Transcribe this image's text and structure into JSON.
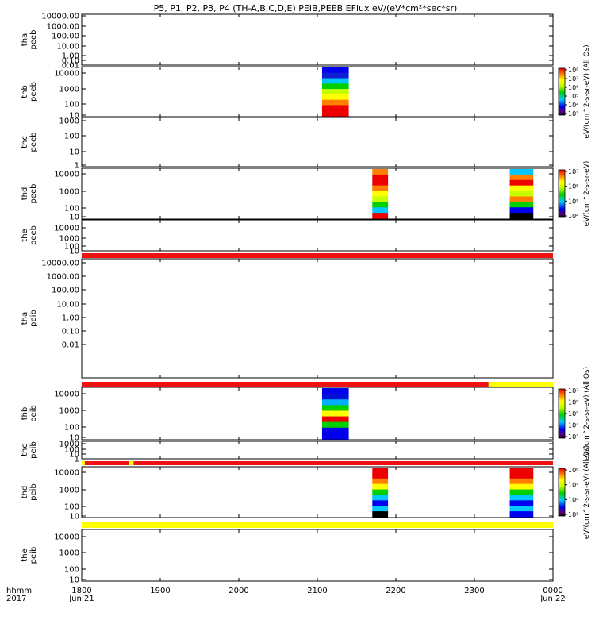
{
  "title": "P5, P1, P2, P3, P4 (TH-A,B,C,D,E) PEIB,PEEB EFlux eV/(eV*cm²*sec*sr)",
  "colors": {
    "state_red": "#ee1111",
    "state_yellow": "#ffff00",
    "axis": "#000000"
  },
  "time_axis": {
    "range_hours": [
      18,
      24
    ],
    "row_labels": [
      "hhmm",
      "2017"
    ],
    "ticks": [
      {
        "t": 18.0,
        "label": "1800",
        "sub": "Jun 21"
      },
      {
        "t": 19.0,
        "label": "1900",
        "sub": ""
      },
      {
        "t": 20.0,
        "label": "2000",
        "sub": ""
      },
      {
        "t": 21.0,
        "label": "2100",
        "sub": ""
      },
      {
        "t": 22.0,
        "label": "2200",
        "sub": ""
      },
      {
        "t": 23.0,
        "label": "2300",
        "sub": ""
      },
      {
        "t": 24.0,
        "label": "0000",
        "sub": "Jun 22"
      }
    ]
  },
  "colorbars": [
    {
      "id": "cb1",
      "panel": 1,
      "title": "eV/(cm^2-s-sr-eV) (All Qs)",
      "ticks": [
        "10³",
        "10⁴",
        "10⁵",
        "10⁶",
        "10⁷",
        "10⁸"
      ]
    },
    {
      "id": "cb2",
      "panel": 3,
      "title": "eV/(cm^2-s-sr-eV)",
      "ticks": [
        "10⁴",
        "10⁵",
        "10⁶",
        "10⁷"
      ]
    },
    {
      "id": "cb3",
      "panel": 6,
      "title": "eV/(cm^2-s-sr-eV) (All Qs)",
      "ticks": [
        "10³",
        "10⁴",
        "10⁵",
        "10⁶",
        "10⁷"
      ]
    },
    {
      "id": "cb4",
      "panel": 8,
      "title": "eV/(cm^2-s-sr-eV) (All Qs)",
      "ticks": [
        "10³",
        "10⁴",
        "10⁵",
        "10⁶"
      ]
    }
  ],
  "chart_data": {
    "type": "heatmap",
    "x_units": "UT hours, 2017 Jun 21",
    "xlim": [
      18,
      24
    ],
    "panels": [
      {
        "label": [
          "tha",
          "peeb"
        ],
        "ytick_labels": [
          "10000.00",
          "1000.00",
          "100.00",
          "10.00",
          "1.00",
          "0.10",
          "0.01"
        ],
        "spectra": [],
        "state_bar": null
      },
      {
        "label": [
          "thb",
          "peeb"
        ],
        "ytick_labels": [
          "10000",
          "1000",
          "100",
          "10"
        ],
        "spectra": [
          {
            "t0": 21.06,
            "t1": 21.4,
            "style": "thb_e"
          }
        ],
        "state_bar": null
      },
      {
        "label": [
          "thc",
          "peeb"
        ],
        "ytick_labels": [
          "1000",
          "100",
          "10",
          "1"
        ],
        "spectra": [],
        "state_bar": null
      },
      {
        "label": [
          "thd",
          "peeb"
        ],
        "ytick_labels": [
          "10000",
          "1000",
          "100",
          "10"
        ],
        "spectra": [
          {
            "t0": 21.7,
            "t1": 21.9,
            "style": "thd_e1"
          },
          {
            "t0": 23.45,
            "t1": 23.75,
            "style": "thd_e2"
          }
        ],
        "state_bar": null
      },
      {
        "label": [
          "the",
          "peeb"
        ],
        "ytick_labels": [
          "10000",
          "1000",
          "100",
          "10"
        ],
        "spectra": [],
        "state_bar": [
          {
            "t0": 18.0,
            "t1": 24.0,
            "color": "state_red"
          }
        ]
      },
      {
        "label": [
          "tha",
          "peib"
        ],
        "ytick_labels": [
          "10000.00",
          "1000.00",
          "100.00",
          "10.00",
          "1.00",
          "0.10",
          "0.01"
        ],
        "spectra": [],
        "state_bar": [
          {
            "t0": 18.0,
            "t1": 23.18,
            "color": "state_red"
          },
          {
            "t0": 23.18,
            "t1": 24.0,
            "color": "state_yellow"
          }
        ]
      },
      {
        "label": [
          "thb",
          "peib"
        ],
        "ytick_labels": [
          "10000",
          "1000",
          "100",
          "10"
        ],
        "spectra": [
          {
            "t0": 21.06,
            "t1": 21.4,
            "style": "thb_i"
          }
        ],
        "state_bar": null
      },
      {
        "label": [
          "thc",
          "peib"
        ],
        "ytick_labels": [
          "1000",
          "100",
          "10",
          "1"
        ],
        "spectra": [],
        "state_bar": [
          {
            "t0": 18.0,
            "t1": 18.04,
            "color": "state_yellow"
          },
          {
            "t0": 18.04,
            "t1": 18.1,
            "color": "state_red"
          },
          {
            "t0": 18.1,
            "t1": 18.6,
            "color": "state_red"
          },
          {
            "t0": 18.6,
            "t1": 18.66,
            "color": "state_yellow"
          },
          {
            "t0": 18.66,
            "t1": 24.0,
            "color": "state_red"
          }
        ]
      },
      {
        "label": [
          "thd",
          "peib"
        ],
        "ytick_labels": [
          "10000",
          "1000",
          "100",
          "10"
        ],
        "spectra": [
          {
            "t0": 21.7,
            "t1": 21.9,
            "style": "thd_i1"
          },
          {
            "t0": 23.45,
            "t1": 23.75,
            "style": "thd_i2"
          }
        ],
        "state_bar": [
          {
            "t0": 18.0,
            "t1": 24.0,
            "color": "state_yellow"
          }
        ]
      },
      {
        "label": [
          "the",
          "peib"
        ],
        "ytick_labels": [
          "10000",
          "1000",
          "100",
          "10"
        ],
        "spectra": [],
        "state_bar": null
      }
    ]
  }
}
